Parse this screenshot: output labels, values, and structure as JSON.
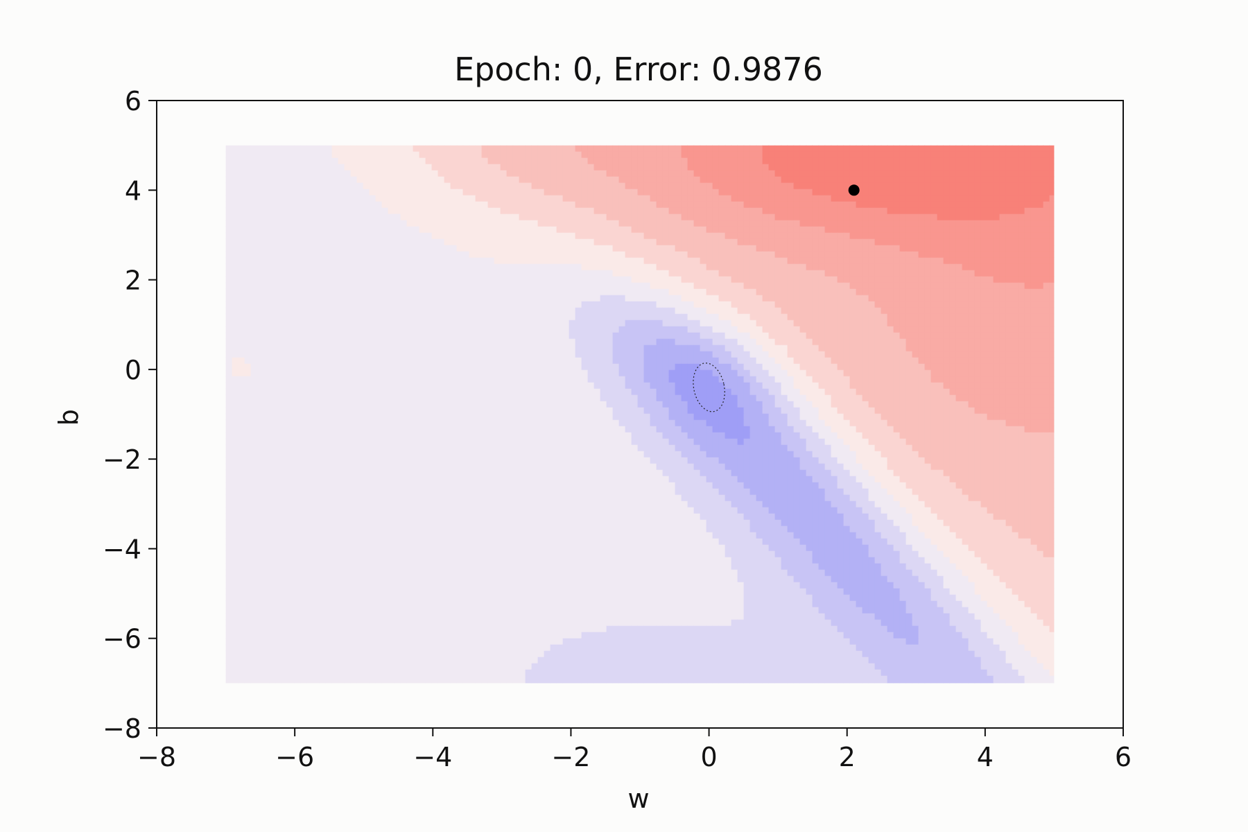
{
  "chart_data": {
    "type": "contour",
    "title": "Epoch:  0, Error: 0.9876",
    "xlabel": "w",
    "ylabel": "b",
    "xlim": [
      -8,
      6
    ],
    "ylim": [
      -8,
      6
    ],
    "xticks": [
      -8,
      -6,
      -4,
      -2,
      0,
      2,
      4,
      6
    ],
    "yticks": [
      -8,
      -6,
      -4,
      -2,
      0,
      2,
      4,
      6
    ],
    "xtick_labels": [
      "−8",
      "−6",
      "−4",
      "−2",
      "0",
      "2",
      "4",
      "6"
    ],
    "ytick_labels": [
      "−8",
      "−6",
      "−4",
      "−2",
      "0",
      "2",
      "4",
      "6"
    ],
    "surface_extent": {
      "w": [
        -7,
        5
      ],
      "b": [
        -7,
        5
      ]
    },
    "grid": false,
    "colormap": "bwr",
    "colors": {
      "low": "#8181f7",
      "mid": "#faf4f3",
      "high": "#f8766d"
    },
    "minimum": {
      "w": 0.0,
      "b": -0.4
    },
    "current_point": {
      "w": 2.1,
      "b": 4.0
    }
  }
}
